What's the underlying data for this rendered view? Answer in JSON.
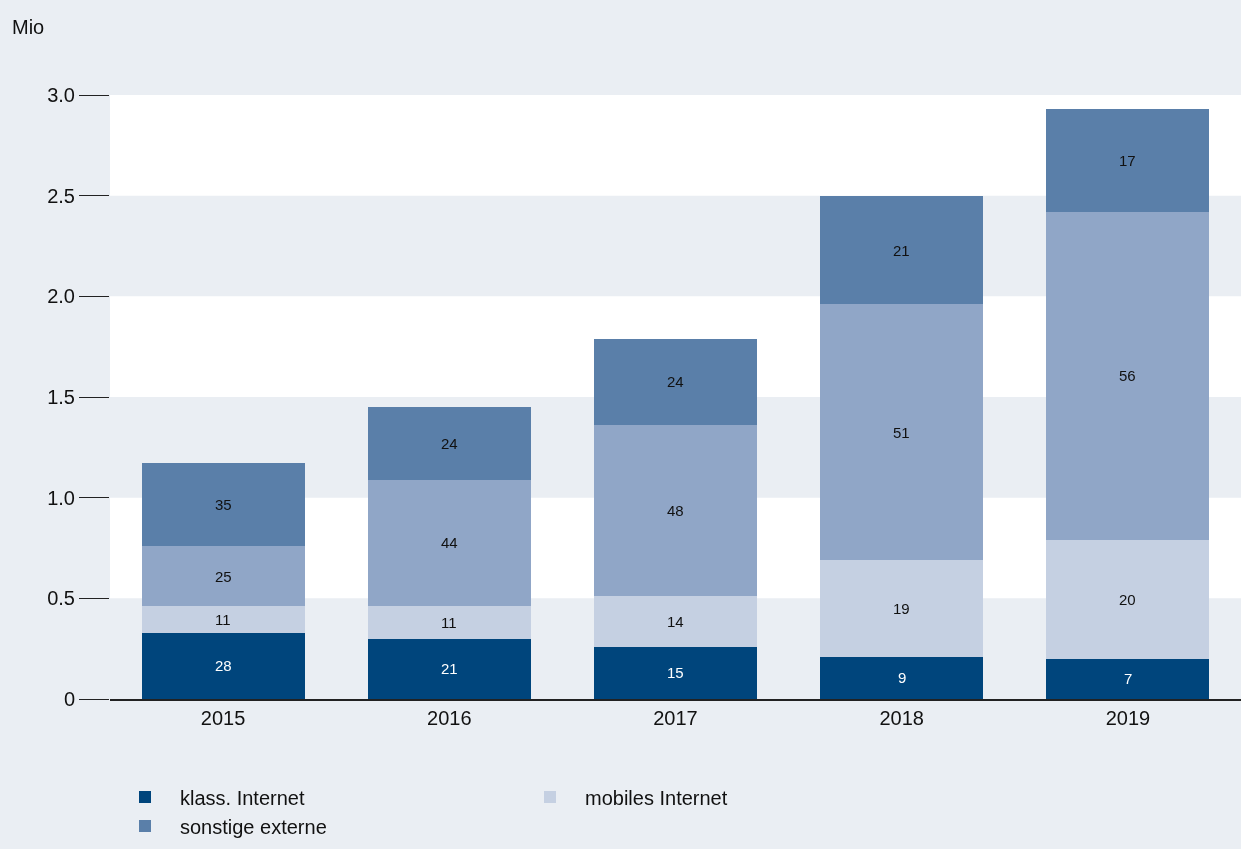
{
  "chart_data": {
    "type": "bar",
    "stacked": true,
    "ylabel": "Mio",
    "categories": [
      "2015",
      "2016",
      "2017",
      "2018",
      "2019"
    ],
    "series": [
      {
        "name": "klass. Internet",
        "color": "#00457c",
        "values": [
          0.33,
          0.3,
          0.26,
          0.21,
          0.2
        ]
      },
      {
        "name": "mobiles Internet",
        "color": "#c5d0e2",
        "values": [
          0.13,
          0.16,
          0.25,
          0.48,
          0.59
        ]
      },
      {
        "color": "#90a6c7",
        "values": [
          0.3,
          0.63,
          0.85,
          1.27,
          1.63
        ]
      },
      {
        "name": "sonstige externe",
        "color": "#5a7fa9",
        "values": [
          0.41,
          0.36,
          0.43,
          0.54,
          0.51
        ]
      }
    ],
    "annotations": [
      "28",
      "11",
      "25",
      "35",
      "21",
      "11",
      "44",
      "24",
      "15",
      "14",
      "48",
      "24",
      "9",
      "19",
      "51",
      "21",
      "7",
      "20",
      "56",
      "17"
    ],
    "ylim": [
      0,
      3
    ],
    "yticks": [
      0,
      0.5,
      {
        "value": 1,
        "label": "1.0"
      },
      1.5,
      {
        "value": 2,
        "label": "2.0"
      },
      2.5,
      {
        "value": 3,
        "label": "3.0"
      }
    ],
    "bands": [
      {
        "axis": "y",
        "from": 0,
        "to": 0.5,
        "color": "#eaeef3"
      },
      {
        "axis": "y",
        "from": 1,
        "to": 1.5,
        "color": "#eaeef3"
      },
      {
        "axis": "y",
        "from": 2,
        "to": 2.5,
        "color": "#eaeef3"
      }
    ],
    "legend": "bottom",
    "grid": false
  }
}
